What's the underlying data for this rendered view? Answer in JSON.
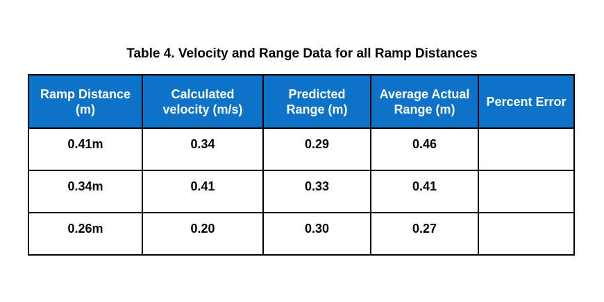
{
  "title": "Table 4. Velocity and Range Data for all Ramp Distances",
  "table": {
    "columns": [
      {
        "line1": "Ramp Distance",
        "line2": "(m)"
      },
      {
        "line1": "Calculated",
        "line2": "velocity (m/s)"
      },
      {
        "line1": "Predicted",
        "line2": "Range (m)"
      },
      {
        "line1": "Average Actual",
        "line2": "Range (m)"
      },
      {
        "line1": "Percent Error",
        "line2": ""
      }
    ],
    "rows": [
      {
        "cells": [
          "0.41m",
          "0.34",
          "0.29",
          "0.46",
          ""
        ]
      },
      {
        "cells": [
          "0.34m",
          "0.41",
          "0.33",
          "0.41",
          ""
        ]
      },
      {
        "cells": [
          "0.26m",
          "0.20",
          "0.30",
          "0.27",
          ""
        ]
      }
    ]
  },
  "colors": {
    "header_bg": "#0D73C8",
    "header_text": "#FFFFFF",
    "border": "#000000",
    "body_text": "#000000",
    "page_bg": "#FFFFFF"
  }
}
